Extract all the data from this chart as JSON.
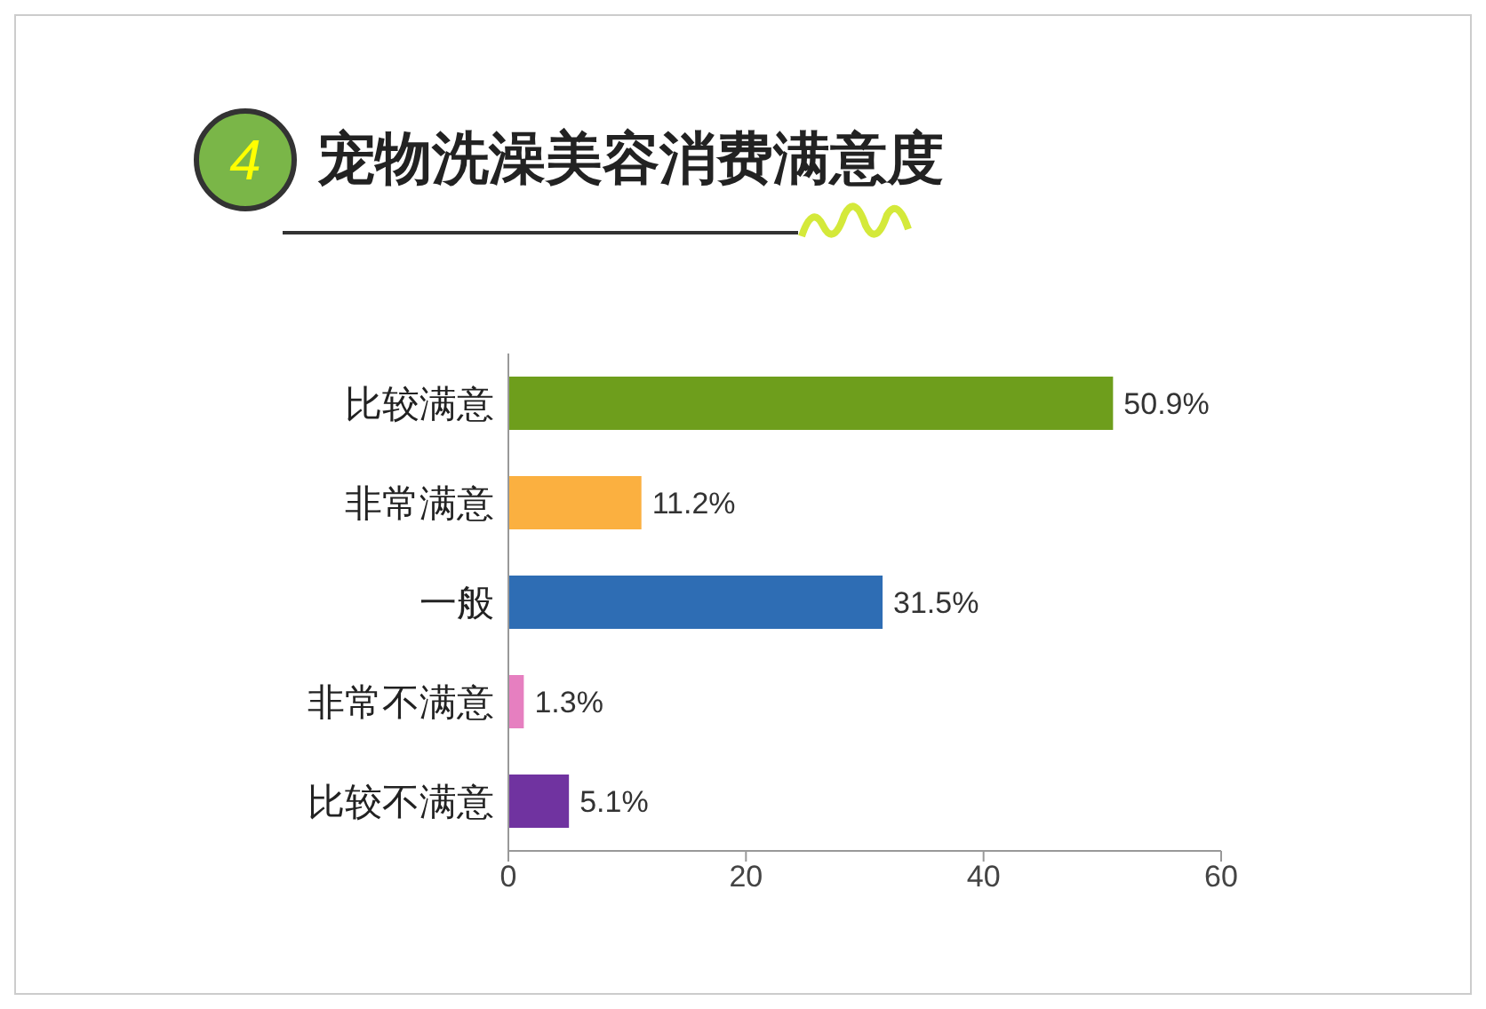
{
  "chart_data": {
    "type": "bar",
    "orientation": "horizontal",
    "title": "宠物洗澡美容消费满意度",
    "annotations": [
      "4"
    ],
    "categories": [
      "比较满意",
      "非常满意",
      "一般",
      "非常不满意",
      "比较不满意"
    ],
    "values": [
      50.9,
      11.2,
      31.5,
      1.3,
      5.1
    ],
    "colors": [
      "#6e9e1c",
      "#fbb040",
      "#2e6db4",
      "#e67fc0",
      "#7033a0"
    ],
    "value_labels": [
      "50.9%",
      "11.2%",
      "31.5%",
      "1.3%",
      "5.1%"
    ],
    "xlim": [
      0,
      60
    ],
    "xticks": [
      0,
      20,
      40,
      60
    ],
    "grid": false,
    "legend": false
  }
}
